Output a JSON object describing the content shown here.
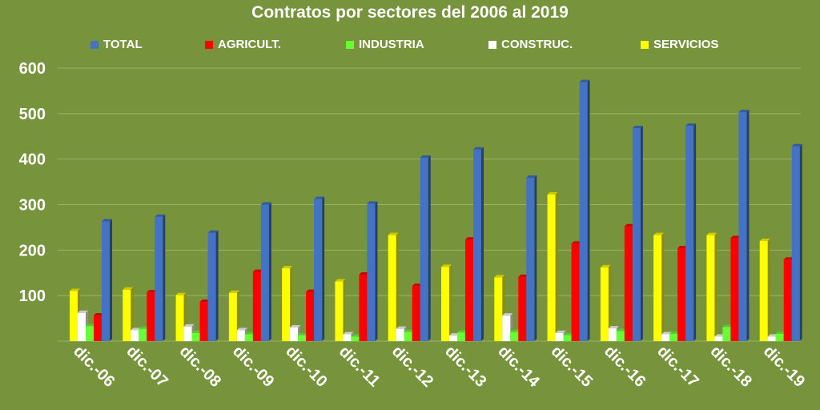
{
  "chart_data": {
    "type": "bar",
    "title": "Contratos por sectores del 2006 al 2019",
    "xlabel": "",
    "ylabel": "",
    "ylim": [
      0,
      600
    ],
    "yticks": [
      100,
      200,
      300,
      400,
      500,
      600
    ],
    "grid": true,
    "legend_position": "top",
    "categories": [
      "dic.-06",
      "dic.-07",
      "dic.-08",
      "dic.-09",
      "dic.-10",
      "dic.-11",
      "dic.-12",
      "dic.-13",
      "dic.-14",
      "dic.-15",
      "dic.-16",
      "dic.-17",
      "dic.-18",
      "dic.-19"
    ],
    "series": [
      {
        "name": "SERVICIOS",
        "color": "#ffff00",
        "values": [
          110,
          113,
          101,
          106,
          160,
          131,
          233,
          163,
          140,
          322,
          162,
          233,
          233,
          220
        ]
      },
      {
        "name": "CONSTRUC.",
        "color": "#ffffff",
        "values": [
          62,
          24,
          32,
          24,
          30,
          15,
          27,
          12,
          56,
          18,
          28,
          15,
          10,
          10
        ]
      },
      {
        "name": "INDUSTRIA",
        "color": "#66ff33",
        "values": [
          33,
          27,
          18,
          15,
          13,
          10,
          20,
          19,
          20,
          13,
          22,
          16,
          31,
          16
        ]
      },
      {
        "name": "AGRICULT.",
        "color": "#ff0000",
        "values": [
          56,
          107,
          86,
          152,
          108,
          146,
          121,
          223,
          141,
          214,
          252,
          204,
          226,
          179
        ]
      },
      {
        "name": "TOTAL",
        "color": "#4472c4",
        "values": [
          263,
          273,
          238,
          300,
          312,
          302,
          403,
          421,
          359,
          569,
          468,
          473,
          503,
          428
        ]
      }
    ],
    "legend": [
      "TOTAL",
      "AGRICULT.",
      "INDUSTRIA",
      "CONSTRUC.",
      "SERVICIOS"
    ]
  }
}
